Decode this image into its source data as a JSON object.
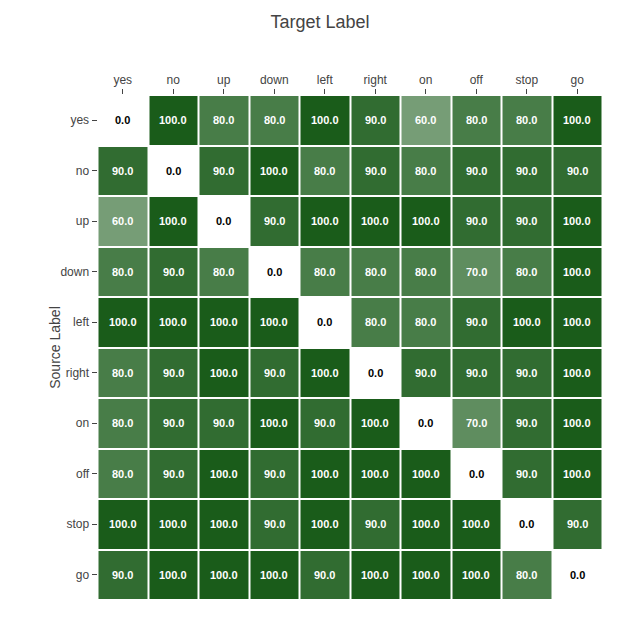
{
  "chart_data": {
    "type": "heatmap",
    "title": "Target Label",
    "ylabel": "Source Label",
    "categories": [
      "yes",
      "no",
      "up",
      "down",
      "left",
      "right",
      "on",
      "off",
      "stop",
      "go"
    ],
    "values": [
      [
        0.0,
        100.0,
        80.0,
        80.0,
        100.0,
        90.0,
        60.0,
        80.0,
        80.0,
        100.0
      ],
      [
        90.0,
        0.0,
        90.0,
        100.0,
        80.0,
        90.0,
        80.0,
        90.0,
        90.0,
        90.0
      ],
      [
        60.0,
        100.0,
        0.0,
        90.0,
        100.0,
        100.0,
        100.0,
        90.0,
        90.0,
        100.0
      ],
      [
        80.0,
        90.0,
        80.0,
        0.0,
        80.0,
        80.0,
        80.0,
        70.0,
        80.0,
        100.0
      ],
      [
        100.0,
        100.0,
        100.0,
        100.0,
        0.0,
        80.0,
        80.0,
        90.0,
        100.0,
        100.0
      ],
      [
        80.0,
        90.0,
        100.0,
        90.0,
        100.0,
        0.0,
        90.0,
        90.0,
        90.0,
        100.0
      ],
      [
        80.0,
        90.0,
        90.0,
        100.0,
        90.0,
        100.0,
        0.0,
        70.0,
        90.0,
        100.0
      ],
      [
        80.0,
        90.0,
        100.0,
        90.0,
        100.0,
        100.0,
        100.0,
        0.0,
        90.0,
        100.0
      ],
      [
        100.0,
        100.0,
        100.0,
        90.0,
        100.0,
        90.0,
        100.0,
        100.0,
        0.0,
        90.0
      ],
      [
        90.0,
        100.0,
        100.0,
        100.0,
        90.0,
        100.0,
        100.0,
        100.0,
        80.0,
        0.0
      ]
    ],
    "value_labels": [
      [
        "0.0",
        "100.0",
        "80.0",
        "80.0",
        "100.0",
        "90.0",
        "60.0",
        "80.0",
        "80.0",
        "100.0"
      ],
      [
        "90.0",
        "0.0",
        "90.0",
        "100.0",
        "80.0",
        "90.0",
        "80.0",
        "90.0",
        "90.0",
        "90.0"
      ],
      [
        "60.0",
        "100.0",
        "0.0",
        "90.0",
        "100.0",
        "100.0",
        "100.0",
        "90.0",
        "90.0",
        "100.0"
      ],
      [
        "80.0",
        "90.0",
        "80.0",
        "0.0",
        "80.0",
        "80.0",
        "80.0",
        "70.0",
        "80.0",
        "100.0"
      ],
      [
        "100.0",
        "100.0",
        "100.0",
        "100.0",
        "0.0",
        "80.0",
        "80.0",
        "90.0",
        "100.0",
        "100.0"
      ],
      [
        "80.0",
        "90.0",
        "100.0",
        "90.0",
        "100.0",
        "0.0",
        "90.0",
        "90.0",
        "90.0",
        "100.0"
      ],
      [
        "80.0",
        "90.0",
        "90.0",
        "100.0",
        "90.0",
        "100.0",
        "0.0",
        "70.0",
        "90.0",
        "100.0"
      ],
      [
        "80.0",
        "90.0",
        "100.0",
        "90.0",
        "100.0",
        "100.0",
        "100.0",
        "0.0",
        "90.0",
        "100.0"
      ],
      [
        "100.0",
        "100.0",
        "100.0",
        "90.0",
        "100.0",
        "90.0",
        "100.0",
        "100.0",
        "0.0",
        "90.0"
      ],
      [
        "90.0",
        "100.0",
        "100.0",
        "100.0",
        "90.0",
        "100.0",
        "100.0",
        "100.0",
        "80.0",
        "0.0"
      ]
    ],
    "zlim": [
      0,
      100
    ],
    "colors": [
      "#ffffff",
      "#1a5c1a"
    ],
    "data_labels": true
  }
}
